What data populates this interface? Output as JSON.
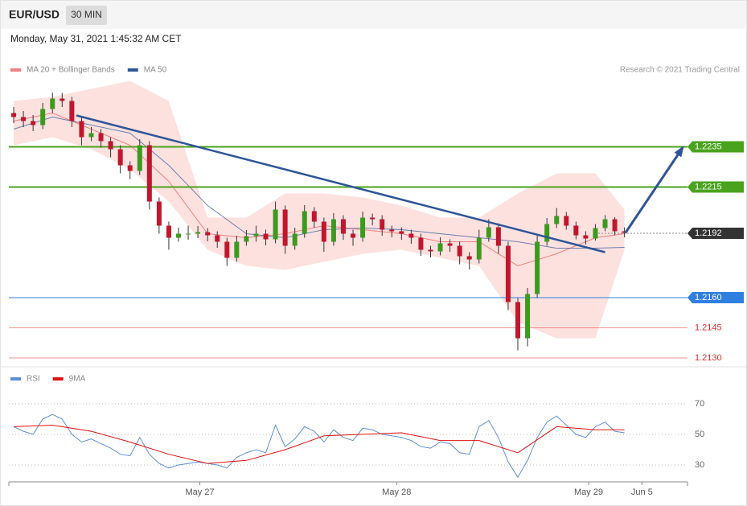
{
  "header": {
    "symbol": "EUR/USD",
    "interval": "30 MIN",
    "timestamp": "Monday, May 31, 2021 1:45:32 AM CET",
    "credit": "Research © 2021 Trading Central"
  },
  "chart_data": [
    {
      "type": "candlestick",
      "legend": [
        {
          "name": "MA 20 + Bollinger Bands",
          "color": "#f08080"
        },
        {
          "name": "MA 50",
          "color": "#2e5597"
        }
      ],
      "up_color": "#3c9a1e",
      "down_color": "#c0162e",
      "xlim": [
        -0.5,
        69.5
      ],
      "ylim": [
        1.2126,
        1.2268
      ],
      "open": [
        1.22518,
        1.22498,
        1.22478,
        1.22458,
        1.22538,
        1.2259,
        1.22578,
        1.22478,
        1.22398,
        1.22418,
        1.22378,
        1.22338,
        1.22258,
        1.2223,
        1.22358,
        1.22078,
        1.21958,
        1.21898,
        1.21918,
        1.21918,
        1.21926,
        1.2191,
        1.21878,
        1.21798,
        1.21878,
        1.21906,
        1.21918,
        1.2189,
        1.22038,
        1.21858,
        1.21918,
        1.2203,
        1.21978,
        1.21878,
        1.2199,
        1.21918,
        1.21898,
        1.21998,
        1.2199,
        1.21938,
        1.2193,
        1.21918,
        1.21898,
        1.21838,
        1.2183,
        1.2187,
        1.21858,
        1.21806,
        1.2179,
        1.21898,
        1.2195,
        1.21858,
        1.21578,
        1.21398,
        1.21618,
        1.21878,
        1.21966,
        1.22006,
        1.21958,
        1.2191,
        1.21894,
        1.21946,
        1.2199,
        1.2193
      ],
      "high": [
        1.22548,
        1.22528,
        1.22508,
        1.22568,
        1.2262,
        1.22618,
        1.22598,
        1.22498,
        1.22448,
        1.22438,
        1.22398,
        1.22358,
        1.22278,
        1.22388,
        1.22378,
        1.22098,
        1.21978,
        1.21948,
        1.21958,
        1.21956,
        1.21946,
        1.2193,
        1.21898,
        1.21908,
        1.21936,
        1.21958,
        1.21938,
        1.22078,
        1.22058,
        1.21948,
        1.2206,
        1.2205,
        1.21998,
        1.2202,
        1.2201,
        1.21938,
        1.22028,
        1.22018,
        1.2201,
        1.21958,
        1.2195,
        1.21938,
        1.21918,
        1.21858,
        1.219,
        1.2189,
        1.21878,
        1.21826,
        1.21938,
        1.2199,
        1.2197,
        1.21878,
        1.21598,
        1.21648,
        1.21908,
        1.21996,
        1.22046,
        1.22026,
        1.21978,
        1.2193,
        1.21966,
        1.2201,
        1.22,
        1.2195
      ],
      "low": [
        1.22468,
        1.22448,
        1.22428,
        1.22438,
        1.22518,
        1.22548,
        1.22448,
        1.22358,
        1.22378,
        1.22348,
        1.22298,
        1.22218,
        1.2219,
        1.2221,
        1.22038,
        1.21918,
        1.21838,
        1.21878,
        1.21888,
        1.21896,
        1.2188,
        1.21848,
        1.21758,
        1.21778,
        1.21858,
        1.21878,
        1.2186,
        1.2187,
        1.21818,
        1.21838,
        1.21898,
        1.21948,
        1.21828,
        1.21858,
        1.21888,
        1.21858,
        1.21878,
        1.2196,
        1.21908,
        1.219,
        1.21888,
        1.21868,
        1.21808,
        1.218,
        1.2181,
        1.21828,
        1.21766,
        1.2174,
        1.2177,
        1.21878,
        1.21818,
        1.21538,
        1.21338,
        1.21358,
        1.21598,
        1.21858,
        1.21946,
        1.21938,
        1.2189,
        1.21864,
        1.21884,
        1.2193,
        1.2191,
        1.219
      ],
      "close": [
        1.22498,
        1.22478,
        1.22458,
        1.22538,
        1.2259,
        1.22578,
        1.22478,
        1.22398,
        1.22418,
        1.22378,
        1.22338,
        1.22258,
        1.2223,
        1.22358,
        1.22078,
        1.21958,
        1.21898,
        1.21918,
        1.21918,
        1.21926,
        1.2191,
        1.21878,
        1.21798,
        1.21878,
        1.21906,
        1.21918,
        1.2189,
        1.22038,
        1.21858,
        1.21918,
        1.2203,
        1.21978,
        1.21878,
        1.2199,
        1.21918,
        1.21898,
        1.21998,
        1.2199,
        1.21938,
        1.2193,
        1.21918,
        1.21898,
        1.21838,
        1.2183,
        1.2187,
        1.21858,
        1.21806,
        1.2179,
        1.21898,
        1.2195,
        1.21858,
        1.21578,
        1.21398,
        1.21618,
        1.21878,
        1.21966,
        1.22006,
        1.21958,
        1.2191,
        1.21894,
        1.21946,
        1.2199,
        1.2193,
        1.21922
      ],
      "overlay_x": [
        0,
        4,
        8,
        12,
        16,
        20,
        24,
        28,
        32,
        36,
        40,
        44,
        48,
        52,
        56,
        60,
        63
      ],
      "bollinger": {
        "color": "#fde1df",
        "upper": [
          1.22578,
          1.22598,
          1.22638,
          1.22678,
          1.22578,
          1.21998,
          1.21998,
          1.22118,
          1.22118,
          1.22098,
          1.22058,
          1.21998,
          1.21998,
          1.22118,
          1.22218,
          1.22218,
          1.22038
        ],
        "lower": [
          1.22358,
          1.22398,
          1.22338,
          1.22238,
          1.22078,
          1.21838,
          1.21758,
          1.21738,
          1.21778,
          1.21818,
          1.21838,
          1.21798,
          1.21758,
          1.21478,
          1.21398,
          1.21398,
          1.21838
        ]
      },
      "ma20": [
        1.22478,
        1.22518,
        1.22438,
        1.22358,
        1.22178,
        1.21918,
        1.21898,
        1.21918,
        1.21958,
        1.21938,
        1.21918,
        1.21878,
        1.21878,
        1.21758,
        1.21818,
        1.21898,
        1.21918
      ],
      "ma50": [
        1.22438,
        1.22498,
        1.22458,
        1.22418,
        1.22258,
        1.22058,
        1.21918,
        1.21898,
        1.21938,
        1.21946,
        1.21938,
        1.21918,
        1.21898,
        1.21878,
        1.21846,
        1.21846,
        1.2185
      ],
      "trendline": {
        "x": [
          6.47,
          61
        ],
        "values": [
          1.22506,
          1.21826
        ],
        "color": "#2e5597"
      },
      "projection": {
        "x": [
          63.1,
          69
        ],
        "values": [
          1.21922,
          1.22346
        ],
        "color": "#2e5597"
      },
      "levels": [
        {
          "value": 1.2235,
          "color": "#4aa31c",
          "style": "box"
        },
        {
          "value": 1.2215,
          "color": "#4aa31c",
          "style": "box"
        },
        {
          "value": 1.2192,
          "color": "#333333",
          "style": "current"
        },
        {
          "value": 1.216,
          "label": "1.2160",
          "color": "#2f7fe0",
          "style": "box"
        },
        {
          "value": 1.2145,
          "color": "#e03030",
          "style": "text"
        },
        {
          "value": 1.213,
          "label": "1.2130",
          "color": "#e03030",
          "style": "text"
        }
      ]
    },
    {
      "type": "line",
      "legend": [
        {
          "name": "RSI",
          "color": "#5b8fd8"
        },
        {
          "name": "9MA",
          "color": "#e01010"
        }
      ],
      "xlim": [
        -0.5,
        69.5
      ],
      "ylim": [
        19.5,
        92
      ],
      "yticks": [
        30,
        50,
        70
      ],
      "xticks": [
        {
          "value": 19.2,
          "label": "May 27"
        },
        {
          "value": 39.5,
          "label": "May 28"
        },
        {
          "value": 59.3,
          "label": "May 29"
        },
        {
          "value": 64.8,
          "label": "Jun 5"
        }
      ],
      "rsi": [
        55,
        52,
        50,
        60,
        63,
        60,
        50,
        45,
        47,
        44,
        41,
        37,
        36,
        48,
        37,
        31,
        28,
        30,
        31,
        32,
        31,
        30,
        28,
        35,
        38,
        40,
        38,
        56,
        42,
        47,
        55,
        52,
        45,
        53,
        48,
        46,
        54,
        53,
        50,
        49,
        48,
        46,
        42,
        41,
        45,
        44,
        38,
        37,
        55,
        59,
        48,
        32,
        22,
        33,
        48,
        58,
        62,
        56,
        50,
        48,
        55,
        58,
        52,
        51
      ],
      "ma_x": [
        0,
        4,
        8,
        12,
        16,
        20,
        24,
        28,
        32,
        36,
        40,
        44,
        48,
        52,
        56,
        60,
        63
      ],
      "ma9": [
        55,
        56,
        52,
        45,
        37,
        31,
        33,
        40,
        49,
        50,
        51,
        46,
        46,
        38,
        55,
        53,
        53
      ]
    }
  ]
}
